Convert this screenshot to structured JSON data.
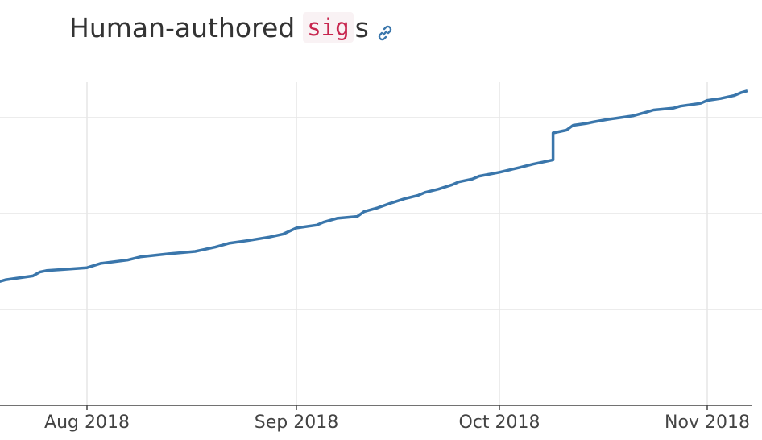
{
  "heading": {
    "prefix": "Human-authored ",
    "code": "sig",
    "suffix": "s"
  },
  "chart_data": {
    "type": "line",
    "title": "Human-authored sigs",
    "xlabel": "",
    "ylabel": "",
    "x_tick_labels": [
      "Aug 2018",
      "Sep 2018",
      "Oct 2018",
      "Nov 2018"
    ],
    "x_tick_dates": [
      "2018-08-01",
      "2018-09-01",
      "2018-10-01",
      "2018-11-01"
    ],
    "xlim": [
      "2018-07-19",
      "2018-11-07"
    ],
    "grid": true,
    "legend": "none",
    "series": [
      {
        "color": "#3a76ab",
        "x": [
          "2018-07-19",
          "2018-07-20",
          "2018-07-24",
          "2018-07-25",
          "2018-07-26",
          "2018-07-28",
          "2018-08-01",
          "2018-08-03",
          "2018-08-07",
          "2018-08-09",
          "2018-08-13",
          "2018-08-17",
          "2018-08-20",
          "2018-08-22",
          "2018-08-25",
          "2018-08-28",
          "2018-08-30",
          "2018-09-01",
          "2018-09-04",
          "2018-09-05",
          "2018-09-07",
          "2018-09-10",
          "2018-09-11",
          "2018-09-13",
          "2018-09-15",
          "2018-09-17",
          "2018-09-19",
          "2018-09-20",
          "2018-09-22",
          "2018-09-24",
          "2018-09-25",
          "2018-09-27",
          "2018-09-28",
          "2018-10-01",
          "2018-10-04",
          "2018-10-06",
          "2018-10-09",
          "2018-10-09",
          "2018-10-11",
          "2018-10-12",
          "2018-10-14",
          "2018-10-15",
          "2018-10-17",
          "2018-10-18",
          "2018-10-21",
          "2018-10-23",
          "2018-10-24",
          "2018-10-27",
          "2018-10-28",
          "2018-10-31",
          "2018-11-01",
          "2018-11-03",
          "2018-11-05",
          "2018-11-06",
          "2018-11-07"
        ],
        "y": [
          2590,
          2610,
          2650,
          2690,
          2705,
          2715,
          2735,
          2780,
          2815,
          2850,
          2880,
          2905,
          2950,
          2990,
          3020,
          3055,
          3085,
          3150,
          3180,
          3210,
          3250,
          3270,
          3320,
          3360,
          3410,
          3455,
          3490,
          3520,
          3555,
          3600,
          3630,
          3660,
          3690,
          3730,
          3780,
          3815,
          3860,
          4140,
          4170,
          4220,
          4240,
          4255,
          4280,
          4290,
          4320,
          4360,
          4380,
          4400,
          4420,
          4450,
          4480,
          4500,
          4530,
          4560,
          4580
        ]
      }
    ],
    "y_gridlines": [
      3300,
      4300
    ]
  }
}
